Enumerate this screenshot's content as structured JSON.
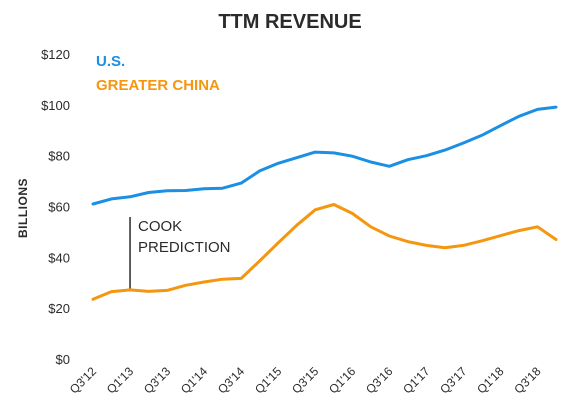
{
  "chart_data": {
    "type": "line",
    "title": "TTM REVENUE",
    "xlabel": "",
    "ylabel": "BILLIONS",
    "ylim": [
      0,
      120
    ],
    "yticks": [
      0,
      20,
      40,
      60,
      80,
      100,
      120
    ],
    "ytick_labels": [
      "$0",
      "$20",
      "$40",
      "$60",
      "$80",
      "$100",
      "$120"
    ],
    "x": [
      "Q3'12",
      "Q4'12",
      "Q1'13",
      "Q2'13",
      "Q3'13",
      "Q4'13",
      "Q1'14",
      "Q2'14",
      "Q3'14",
      "Q4'14",
      "Q1'15",
      "Q2'15",
      "Q3'15",
      "Q4'15",
      "Q1'16",
      "Q2'16",
      "Q3'16",
      "Q4'16",
      "Q1'17",
      "Q2'17",
      "Q3'17",
      "Q4'17",
      "Q1'18",
      "Q2'18",
      "Q3'18",
      "Q4'18"
    ],
    "xtick_labels": [
      "Q3'12",
      "Q1'13",
      "Q3'13",
      "Q1'14",
      "Q3'14",
      "Q1'15",
      "Q3'15",
      "Q1'16",
      "Q3'16",
      "Q1'17",
      "Q3'17",
      "Q1'18",
      "Q3'18"
    ],
    "grid": false,
    "legend_position": "top-left",
    "series": [
      {
        "name": "U.S.",
        "color": "#1a8fe3",
        "values": [
          61,
          63,
          63.8,
          65.5,
          66.2,
          66.3,
          67,
          67.2,
          69.2,
          74,
          77,
          79.2,
          81.4,
          81.1,
          79.8,
          77.5,
          75.8,
          78.4,
          80,
          82.2,
          85,
          88,
          91.8,
          95.5,
          98.2,
          99.1
        ]
      },
      {
        "name": "GREATER CHINA",
        "color": "#f5960f",
        "values": [
          23.5,
          26.5,
          27.2,
          26.6,
          27,
          29,
          30.3,
          31.4,
          31.7,
          38.6,
          45.7,
          52.6,
          58.7,
          60.8,
          57.3,
          52,
          48.4,
          46.2,
          44.7,
          43.8,
          44.7,
          46.5,
          48.5,
          50.5,
          52,
          47
        ]
      }
    ],
    "annotation": {
      "text_line1": "COOK",
      "text_line2": "PREDICTION",
      "x": "Q1'13"
    }
  }
}
